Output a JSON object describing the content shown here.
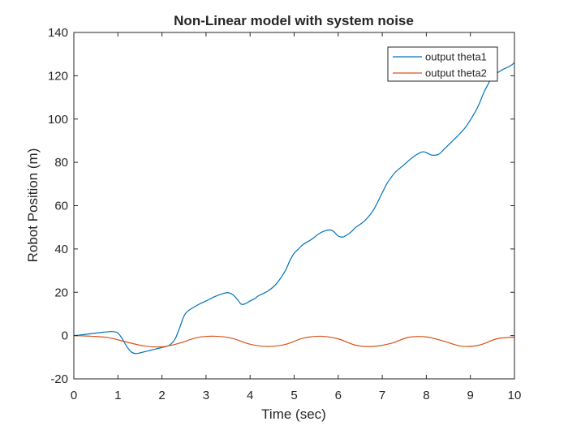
{
  "chart_data": {
    "type": "line",
    "title": "Non-Linear model with system noise",
    "xlabel": "Time (sec)",
    "ylabel": "Robot Position (m)",
    "xlim": [
      0,
      10
    ],
    "ylim": [
      -20,
      140
    ],
    "xticks": [
      0,
      1,
      2,
      3,
      4,
      5,
      6,
      7,
      8,
      9,
      10
    ],
    "yticks": [
      -20,
      0,
      20,
      40,
      60,
      80,
      100,
      120,
      140
    ],
    "grid": false,
    "legend_position": "top-right",
    "series": [
      {
        "name": "output theta1",
        "color": "#0072BD",
        "x": [
          0,
          0.2,
          0.4,
          0.6,
          0.8,
          0.9,
          1.0,
          1.1,
          1.2,
          1.3,
          1.4,
          1.5,
          1.6,
          1.7,
          1.8,
          1.9,
          2.0,
          2.1,
          2.2,
          2.3,
          2.4,
          2.5,
          2.6,
          2.8,
          3.0,
          3.2,
          3.4,
          3.5,
          3.6,
          3.7,
          3.8,
          3.9,
          4.0,
          4.1,
          4.2,
          4.4,
          4.6,
          4.8,
          4.9,
          5.0,
          5.1,
          5.2,
          5.4,
          5.6,
          5.8,
          5.9,
          6.0,
          6.1,
          6.2,
          6.3,
          6.4,
          6.6,
          6.8,
          7.0,
          7.1,
          7.2,
          7.3,
          7.5,
          7.7,
          7.9,
          8.0,
          8.1,
          8.2,
          8.3,
          8.4,
          8.5,
          8.7,
          8.9,
          9.1,
          9.2,
          9.3,
          9.4,
          9.5,
          9.7,
          9.9,
          10.0
        ],
        "values": [
          0,
          0.4,
          0.9,
          1.4,
          1.8,
          1.8,
          1.2,
          -1.5,
          -5.0,
          -7.5,
          -8.3,
          -8.0,
          -7.5,
          -7.0,
          -6.5,
          -6.0,
          -5.5,
          -5.0,
          -4.0,
          -1.5,
          3.5,
          9.0,
          11.5,
          14.0,
          16.0,
          18.0,
          19.5,
          19.8,
          19.0,
          17.0,
          14.5,
          14.8,
          16.0,
          17.0,
          18.5,
          20.5,
          24.0,
          30.0,
          34.5,
          38.0,
          40.0,
          42.0,
          44.5,
          47.5,
          48.8,
          48.0,
          46.0,
          45.5,
          46.5,
          48.0,
          50.0,
          53.0,
          58.0,
          66.0,
          70.0,
          73.0,
          75.5,
          79.0,
          82.5,
          84.8,
          84.5,
          83.5,
          83.3,
          84.0,
          86.0,
          88.0,
          92.0,
          96.5,
          103.0,
          107.0,
          112.0,
          116.0,
          119.5,
          122.5,
          124.5,
          126.0
        ]
      },
      {
        "name": "output theta2",
        "color": "#D95319",
        "x": [
          0,
          0.4,
          0.8,
          1.2,
          1.6,
          2.0,
          2.4,
          2.8,
          3.2,
          3.6,
          4.0,
          4.4,
          4.8,
          5.2,
          5.6,
          6.0,
          6.4,
          6.8,
          7.2,
          7.6,
          8.0,
          8.4,
          8.8,
          9.2,
          9.6,
          10.0
        ],
        "values": [
          0,
          -0.3,
          -1.0,
          -3.0,
          -4.8,
          -5.2,
          -3.5,
          -0.9,
          -0.3,
          -1.3,
          -4.0,
          -5.0,
          -4.1,
          -1.2,
          -0.3,
          -1.5,
          -4.5,
          -5.0,
          -3.6,
          -0.8,
          -0.6,
          -2.6,
          -4.9,
          -4.4,
          -1.5,
          -0.7
        ]
      }
    ]
  }
}
